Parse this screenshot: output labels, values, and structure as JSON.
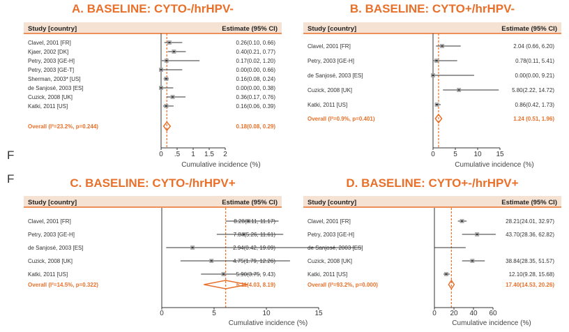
{
  "stray_letters": [
    "F",
    "F"
  ],
  "chart_data": [
    {
      "type": "forest",
      "title": "A. BASELINE: CYTO-/hrHPV-",
      "header": {
        "study": "Study [country]",
        "estimate": "Estimate (95% CI)"
      },
      "xlabel": "Cumulative incidence (%)",
      "xlim": [
        0,
        2.3
      ],
      "ticks": [
        0,
        0.5,
        1,
        1.5,
        2
      ],
      "tick_labels": [
        "0",
        ".5",
        "1",
        "1.5",
        "2"
      ],
      "studies": [
        {
          "label": "Clavel, 2001 [FR]",
          "est": 0.26,
          "lo": 0.1,
          "hi": 0.66,
          "text": "0.26(0.10, 0.66)"
        },
        {
          "label": "Kjaer, 2002 [DK]",
          "est": 0.4,
          "lo": 0.21,
          "hi": 0.77,
          "text": "0.40(0.21, 0.77)"
        },
        {
          "label": "Petry, 2003 [GE-H]",
          "est": 0.17,
          "lo": 0.02,
          "hi": 1.2,
          "text": "0.17(0.02, 1.20)"
        },
        {
          "label": "Petry, 2003 [GE-T]",
          "est": 0.0,
          "lo": 0.0,
          "hi": 0.66,
          "text": "0.00(0.00, 0.66)"
        },
        {
          "label": "Sherman, 2003* [US]",
          "est": 0.16,
          "lo": 0.08,
          "hi": 0.24,
          "text": "0.16(0.08, 0.24)"
        },
        {
          "label": "de Sanjosé, 2003 [ES]",
          "est": 0.0,
          "lo": 0.0,
          "hi": 0.38,
          "text": "0.00(0.00, 0.38)"
        },
        {
          "label": "Cuzick, 2008 [UK]",
          "est": 0.36,
          "lo": 0.17,
          "hi": 0.76,
          "text": "0.36(0.17, 0.76)"
        },
        {
          "label": "Katki, 2011 [US]",
          "est": 0.16,
          "lo": 0.06,
          "hi": 0.39,
          "text": "0.16(0.06, 0.39)"
        }
      ],
      "overall": {
        "label": "Overall (I²=23.2%, p=0.244)",
        "est": 0.18,
        "lo": 0.08,
        "hi": 0.29,
        "text": "0.18(0.08, 0.29)"
      }
    },
    {
      "type": "forest",
      "title": "B. BASELINE: CYTO+/hrHPV-",
      "header": {
        "study": "Study [country]",
        "estimate": "Estimate (95% CI)"
      },
      "xlabel": "Cumulative incidence (%)",
      "xlim": [
        0,
        18
      ],
      "ticks": [
        0,
        5,
        10,
        15
      ],
      "tick_labels": [
        "0",
        "5",
        "10",
        "15"
      ],
      "studies": [
        {
          "label": "Clavel, 2001 [FR]",
          "est": 2.04,
          "lo": 0.66,
          "hi": 6.2,
          "text": "2.04 (0.66, 6.20)"
        },
        {
          "label": "Petry, 2003 [GE-H]",
          "est": 0.78,
          "lo": 0.11,
          "hi": 5.41,
          "text": "0.78(0.11, 5.41)"
        },
        {
          "label": "de Sanjosé, 2003 [ES]",
          "est": 0.0,
          "lo": 0.0,
          "hi": 9.21,
          "text": "0.00(0.00, 9.21)"
        },
        {
          "label": "Cuzick, 2008 [UK]",
          "est": 5.8,
          "lo": 2.22,
          "hi": 14.72,
          "text": "5.80(2.22, 14.72)"
        },
        {
          "label": "Katki, 2011 [US]",
          "est": 0.86,
          "lo": 0.42,
          "hi": 1.73,
          "text": "0.86(0.42, 1.73)"
        }
      ],
      "overall": {
        "label": "Overall (I²=0.9%, p=0.401)",
        "est": 1.24,
        "lo": 0.51,
        "hi": 1.96,
        "text": "1.24 (0.51, 1.96)"
      }
    },
    {
      "type": "forest",
      "title": "C. BASELINE: CYTO-/hrHPV+",
      "header": {
        "study": "Study [country]",
        "estimate": "Estimate (95% CI)"
      },
      "xlabel": "Cumulative incidence (%)",
      "xlim": [
        0,
        20
      ],
      "ticks": [
        0,
        5,
        10,
        15
      ],
      "tick_labels": [
        "0",
        "5",
        "10",
        "15"
      ],
      "studies": [
        {
          "label": "Clavel, 2001 [FR]",
          "est": 8.28,
          "lo": 6.11,
          "hi": 11.17,
          "text": "8.28(6.11, 11.17)"
        },
        {
          "label": "Petry, 2003 [GE-H]",
          "est": 7.84,
          "lo": 5.26,
          "hi": 11.61,
          "text": "7.84(5.26, 11.61)"
        },
        {
          "label": "de Sanjosé, 2003 [ES]",
          "est": 2.94,
          "lo": 0.42,
          "hi": 19.09,
          "text": "2.94(0.42, 19.09)"
        },
        {
          "label": "Cuzick, 2008 [UK]",
          "est": 4.75,
          "lo": 1.79,
          "hi": 12.26,
          "text": "4.75(1.79, 12.26)"
        },
        {
          "label": "Katki, 2011 [US]",
          "est": 5.9,
          "lo": 3.75,
          "hi": 9.43,
          "text": "5.90(3.75, 9.43)"
        }
      ],
      "overall": {
        "label": "Overall (I²=14.5%, p=0.322)",
        "est": 6.11,
        "lo": 4.03,
        "hi": 8.19,
        "text": "6.11(4.03, 8.19)"
      }
    },
    {
      "type": "forest",
      "title": "D. BASELINE: CYTO+-/hrHPV+",
      "header": {
        "study": "Study [country]",
        "estimate": "Estimate (95% CI)"
      },
      "xlabel": "Cumulative incidence (%)",
      "xlim": [
        0,
        70
      ],
      "ticks": [
        0,
        20,
        40,
        60
      ],
      "tick_labels": [
        "0",
        "20",
        "40",
        "60"
      ],
      "studies": [
        {
          "label": "Clavel, 2001 [FR]",
          "est": 28.21,
          "lo": 24.01,
          "hi": 32.97,
          "text": "28.21(24.01, 32.97)"
        },
        {
          "label": "Petry, 2003 [GE-H]",
          "est": 43.7,
          "lo": 28.36,
          "hi": 62.82,
          "text": "43.70(28.36, 62.82)"
        },
        {
          "label": "de Sanjosé, 2003 [ES]",
          "est": null,
          "lo": 0.0,
          "hi": 32.0,
          "text": ""
        },
        {
          "label": "Cuzick, 2008 [UK]",
          "est": 38.84,
          "lo": 28.35,
          "hi": 51.57,
          "text": "38.84(28.35, 51.57)"
        },
        {
          "label": "Katki, 2011 [US]",
          "est": 12.1,
          "lo": 9.28,
          "hi": 15.68,
          "text": "12.10(9.28, 15.68)"
        }
      ],
      "overall": {
        "label": "Overall (I²=93.2%, p=0.000)",
        "est": 17.4,
        "lo": 14.53,
        "hi": 20.26,
        "text": "17.40(14.53, 20.26)"
      }
    }
  ],
  "colors": {
    "accent": "#e8702a",
    "header_bg": "#f6e2d2",
    "line": "#333333",
    "marker": "#9a9a9a"
  }
}
